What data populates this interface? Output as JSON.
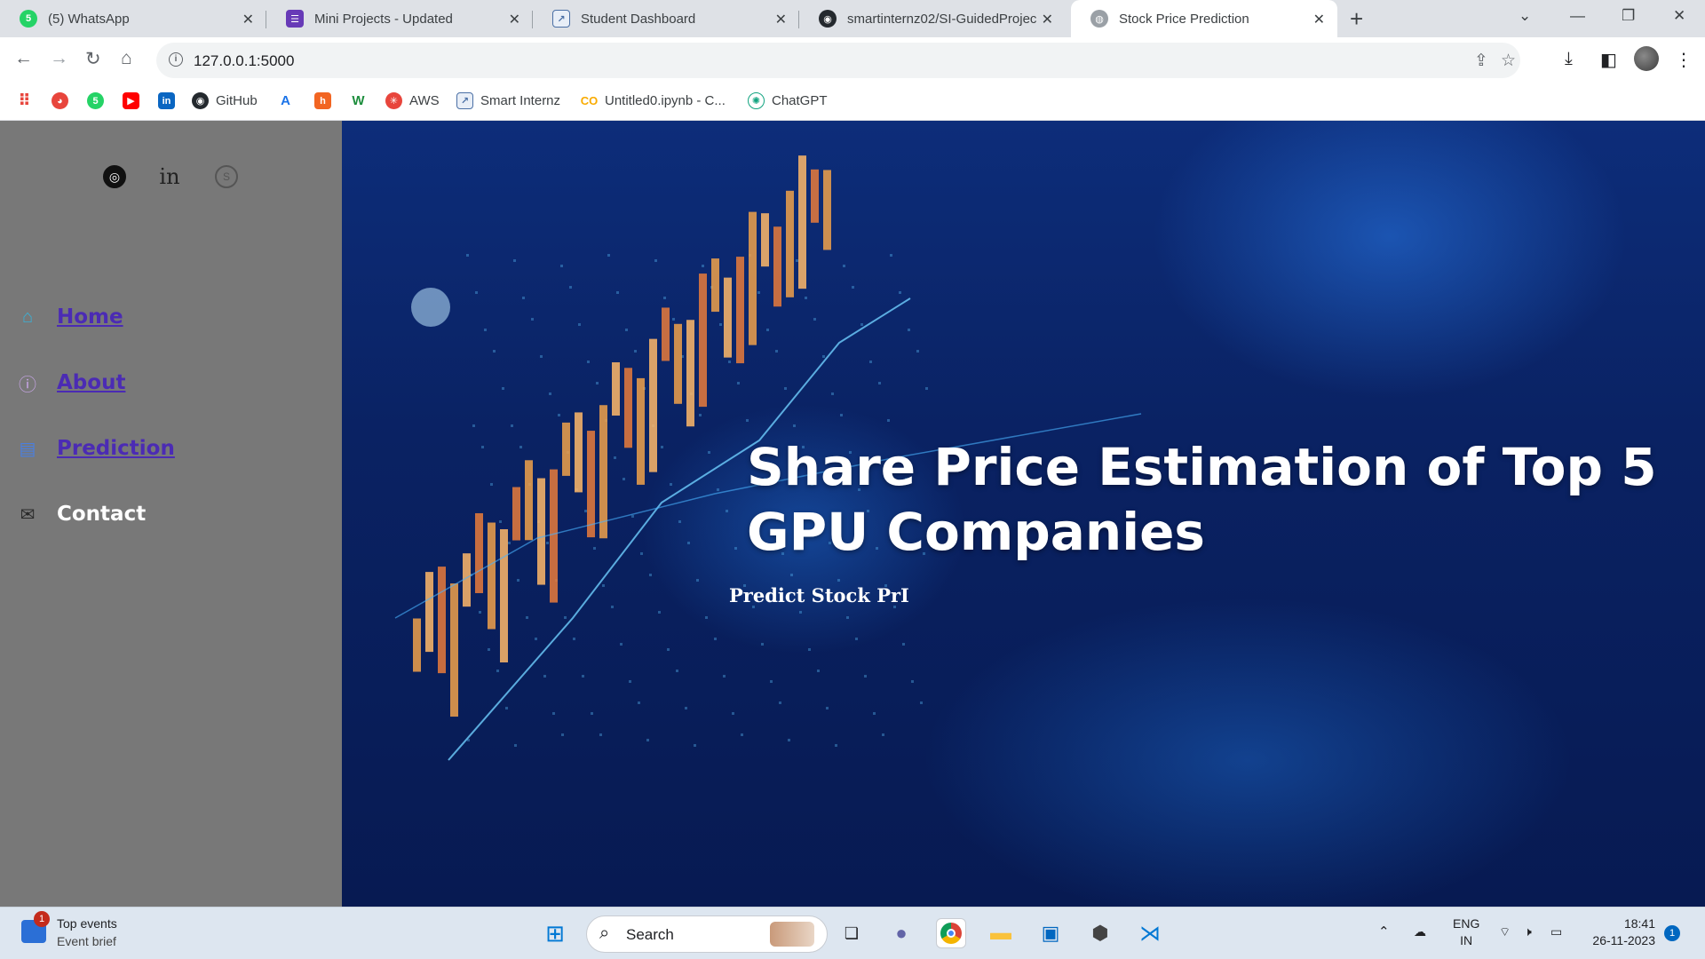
{
  "browser": {
    "tabs": [
      {
        "title": "(5) WhatsApp",
        "icon": "whatsapp-icon",
        "icon_color": "#25d366",
        "active": false
      },
      {
        "title": "Mini Projects - Updated",
        "icon": "forms-icon",
        "icon_color": "#673ab7",
        "active": false
      },
      {
        "title": "Student Dashboard",
        "icon": "dashboard-icon",
        "icon_color": "#4a6fa5",
        "active": false
      },
      {
        "title": "smartinternz02/SI-GuidedProjec",
        "icon": "github-icon",
        "icon_color": "#24292e",
        "active": false
      },
      {
        "title": "Stock Price Prediction",
        "icon": "globe-icon",
        "icon_color": "#5f6368",
        "active": true
      }
    ],
    "url": "127.0.0.1:5000",
    "bookmarks": [
      {
        "label": "",
        "icon": "apps-grid-icon"
      },
      {
        "label": "",
        "icon": "bookmark-red-icon"
      },
      {
        "label": "",
        "icon": "whatsapp-icon"
      },
      {
        "label": "",
        "icon": "youtube-icon"
      },
      {
        "label": "",
        "icon": "linkedin-icon"
      },
      {
        "label": "GitHub",
        "icon": "github-icon"
      },
      {
        "label": "",
        "icon": "ai-icon"
      },
      {
        "label": "",
        "icon": "bookmark-orange-icon"
      },
      {
        "label": "",
        "icon": "w-icon"
      },
      {
        "label": "AWS",
        "icon": "aws-icon"
      },
      {
        "label": "Smart Internz",
        "icon": "smartinternz-icon"
      },
      {
        "label": "Untitled0.ipynb - C...",
        "icon": "colab-icon"
      },
      {
        "label": "ChatGPT",
        "icon": "chatgpt-icon"
      }
    ]
  },
  "sidebar": {
    "social": [
      "instagram-icon",
      "linkedin-icon",
      "skype-icon"
    ],
    "menu": [
      {
        "label": "Home",
        "icon": "home-icon",
        "link": true
      },
      {
        "label": "About",
        "icon": "info-icon",
        "link": true
      },
      {
        "label": "Prediction",
        "icon": "document-icon",
        "link": true
      },
      {
        "label": "Contact",
        "icon": "mail-icon",
        "link": false
      }
    ]
  },
  "hero": {
    "title": "Share Price Estimation of Top 5 GPU Companies",
    "subtitle": "Predict Stock PrI"
  },
  "taskbar": {
    "weather_title": "Top events",
    "weather_sub": "Event brief",
    "weather_badge": "1",
    "search_label": "Search",
    "lang_top": "ENG",
    "lang_bottom": "IN",
    "time": "18:41",
    "date": "26-11-2023",
    "notification_count": "1"
  },
  "colors": {
    "link": "#4b2bb4",
    "sidebar_bg": "#787878",
    "hero_bg": "#0a2263"
  }
}
